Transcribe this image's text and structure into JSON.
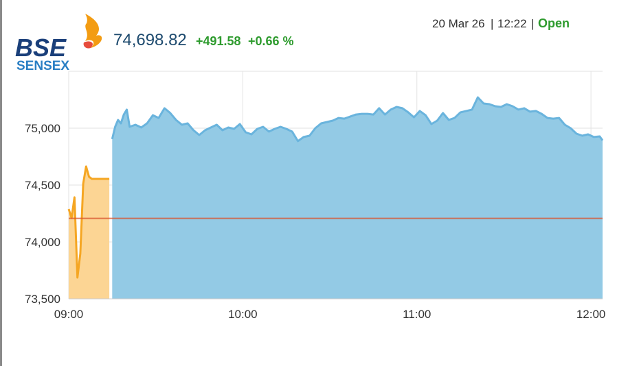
{
  "header": {
    "logo": "BSE",
    "index_name": "SENSEX",
    "value": "74,698.82",
    "change": "+491.58",
    "change_pct": "+0.66 %",
    "date": "20 Mar 26",
    "separator": "|",
    "time": "12:22",
    "status": "Open"
  },
  "chart_data": {
    "type": "area",
    "xlim": [
      "09:00",
      "12:04"
    ],
    "xticks": [
      "09:00",
      "10:00",
      "11:00",
      "12:00"
    ],
    "ylim": [
      73500,
      75500
    ],
    "yticks": [
      {
        "value": 73500,
        "label": "73,500"
      },
      {
        "value": 74000,
        "label": "74,000"
      },
      {
        "value": 74500,
        "label": "74,500"
      },
      {
        "value": 75000,
        "label": "75,000"
      }
    ],
    "grid": true,
    "reference_line": 74207.24,
    "reference_color": "#d9532c",
    "series": [
      {
        "color": "#f5a623",
        "fill": "#fcd594",
        "x": [
          "09:00",
          "09:01",
          "09:02",
          "09:03",
          "09:04",
          "09:05",
          "09:06",
          "09:07",
          "09:08",
          "09:14"
        ],
        "values": [
          74289,
          74211,
          74392,
          73687,
          73898,
          74512,
          74663,
          74572,
          74554,
          74554
        ]
      },
      {
        "color": "#6ab4dd",
        "fill": "#93cae5",
        "x": [
          "09:15",
          "09:16",
          "09:17",
          "09:18",
          "09:19",
          "09:20",
          "09:21",
          "09:23",
          "09:25",
          "09:27",
          "09:29",
          "09:31",
          "09:33",
          "09:35",
          "09:37",
          "09:39",
          "09:41",
          "09:43",
          "09:45",
          "09:47",
          "09:49",
          "09:51",
          "09:53",
          "09:55",
          "09:57",
          "09:59",
          "10:01",
          "10:03",
          "10:05",
          "10:07",
          "10:09",
          "10:11",
          "10:13",
          "10:15",
          "10:17",
          "10:19",
          "10:21",
          "10:23",
          "10:25",
          "10:27",
          "10:29",
          "10:31",
          "10:33",
          "10:35",
          "10:37",
          "10:39",
          "10:41",
          "10:43",
          "10:45",
          "10:47",
          "10:49",
          "10:51",
          "10:53",
          "10:55",
          "10:57",
          "10:59",
          "11:01",
          "11:03",
          "11:05",
          "11:07",
          "11:09",
          "11:11",
          "11:13",
          "11:15",
          "11:17",
          "11:19",
          "11:21",
          "11:23",
          "11:25",
          "11:27",
          "11:29",
          "11:31",
          "11:33",
          "11:35",
          "11:37",
          "11:39",
          "11:41",
          "11:43",
          "11:45",
          "11:47",
          "11:49",
          "11:51",
          "11:53",
          "11:55",
          "11:57",
          "11:59",
          "12:01",
          "12:03",
          "12:04"
        ],
        "values": [
          74904,
          75012,
          75072,
          75042,
          75120,
          75163,
          75012,
          75030,
          75006,
          75042,
          75114,
          75090,
          75175,
          75133,
          75072,
          75030,
          75042,
          74982,
          74940,
          74982,
          75006,
          75030,
          74982,
          75006,
          74994,
          75036,
          74964,
          74946,
          74994,
          75012,
          74970,
          74994,
          75012,
          74994,
          74970,
          74886,
          74922,
          74934,
          75000,
          75042,
          75054,
          75066,
          75090,
          75084,
          75102,
          75120,
          75126,
          75126,
          75120,
          75175,
          75120,
          75163,
          75187,
          75175,
          75139,
          75096,
          75151,
          75114,
          75036,
          75066,
          75133,
          75072,
          75090,
          75139,
          75151,
          75163,
          75271,
          75217,
          75211,
          75193,
          75187,
          75211,
          75193,
          75163,
          75175,
          75145,
          75151,
          75126,
          75090,
          75084,
          75090,
          75030,
          75000,
          74952,
          74934,
          74946,
          74922,
          74928,
          74892
        ]
      }
    ]
  }
}
